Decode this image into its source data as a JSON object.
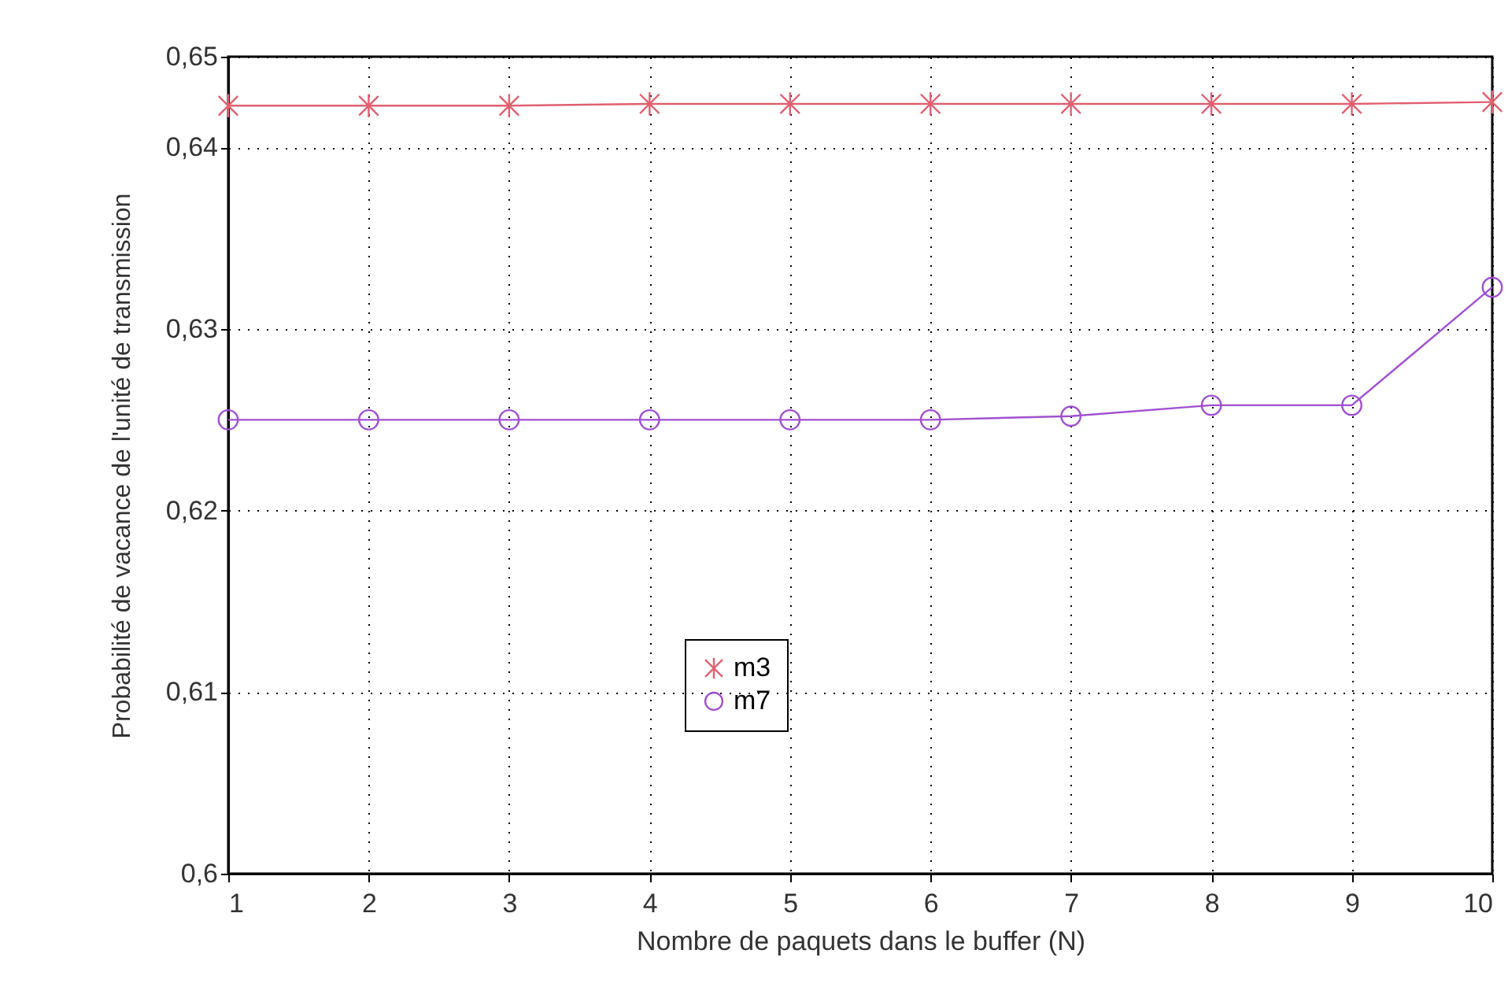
{
  "chart_data": {
    "type": "line",
    "xlabel": "Nombre de paquets dans le buffer (N)",
    "ylabel": "Probabilité de vacance de l'unité de transmission",
    "x": [
      1,
      2,
      3,
      4,
      5,
      6,
      7,
      8,
      9,
      10
    ],
    "series": [
      {
        "name": "m3",
        "color": "#e06070",
        "marker": "cross",
        "values": [
          0.6423,
          0.6423,
          0.6423,
          0.6424,
          0.6424,
          0.6424,
          0.6424,
          0.6424,
          0.6424,
          0.6425
        ]
      },
      {
        "name": "m7",
        "color": "#a050d0",
        "marker": "circle",
        "values": [
          0.625,
          0.625,
          0.625,
          0.625,
          0.625,
          0.625,
          0.6252,
          0.6258,
          0.6258,
          0.6323
        ]
      }
    ],
    "xlim": [
      1,
      10
    ],
    "xticks": [
      1,
      2,
      3,
      4,
      5,
      6,
      7,
      8,
      9,
      10
    ],
    "ylim": [
      0.6,
      0.645
    ],
    "yticks": [
      {
        "value": 0.6,
        "label": "0,6"
      },
      {
        "value": 0.61,
        "label": "0,61"
      },
      {
        "value": 0.62,
        "label": "0,62"
      },
      {
        "value": 0.63,
        "label": "0,63"
      },
      {
        "value": 0.64,
        "label": "0,64"
      },
      {
        "value": 0.645,
        "label": "0,65"
      }
    ],
    "grid": true,
    "legend": "bottom",
    "line_style": "solid"
  }
}
